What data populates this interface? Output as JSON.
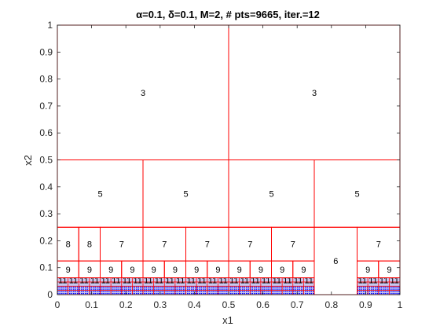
{
  "chart_data": {
    "type": "partition",
    "title": "α=0.1, δ=0.1, M=2, # pts=9665, iter.=12",
    "xlabel": "x1",
    "ylabel": "x2",
    "xlim": [
      0,
      1
    ],
    "ylim": [
      0,
      1
    ],
    "xticks": [
      "0",
      "0.1",
      "0.2",
      "0.3",
      "0.4",
      "0.5",
      "0.6",
      "0.7",
      "0.8",
      "0.9",
      "1"
    ],
    "yticks": [
      "0",
      "0.1",
      "0.2",
      "0.3",
      "0.4",
      "0.5",
      "0.6",
      "0.7",
      "0.8",
      "0.9",
      "1"
    ],
    "cell_color": "#ff0000",
    "point_color": "#0000ff",
    "cells": [
      {
        "x": [
          0,
          0.5
        ],
        "y": [
          0.5,
          1
        ],
        "label": "3"
      },
      {
        "x": [
          0.5,
          1
        ],
        "y": [
          0.5,
          1
        ],
        "label": "3"
      },
      {
        "x": [
          0,
          0.25
        ],
        "y": [
          0.25,
          0.5
        ],
        "label": "5"
      },
      {
        "x": [
          0.25,
          0.5
        ],
        "y": [
          0.25,
          0.5
        ],
        "label": "5"
      },
      {
        "x": [
          0.5,
          0.75
        ],
        "y": [
          0.25,
          0.5
        ],
        "label": "5"
      },
      {
        "x": [
          0.75,
          1
        ],
        "y": [
          0.25,
          0.5
        ],
        "label": "5"
      },
      {
        "x": [
          0,
          0.0625
        ],
        "y": [
          0.125,
          0.25
        ],
        "label": "8"
      },
      {
        "x": [
          0.0625,
          0.125
        ],
        "y": [
          0.125,
          0.25
        ],
        "label": "8"
      },
      {
        "x": [
          0.125,
          0.25
        ],
        "y": [
          0.125,
          0.25
        ],
        "label": "7"
      },
      {
        "x": [
          0.25,
          0.375
        ],
        "y": [
          0.125,
          0.25
        ],
        "label": "7"
      },
      {
        "x": [
          0.375,
          0.5
        ],
        "y": [
          0.125,
          0.25
        ],
        "label": "7"
      },
      {
        "x": [
          0.5,
          0.625
        ],
        "y": [
          0.125,
          0.25
        ],
        "label": "7"
      },
      {
        "x": [
          0.625,
          0.75
        ],
        "y": [
          0.125,
          0.25
        ],
        "label": "7"
      },
      {
        "x": [
          0.875,
          1
        ],
        "y": [
          0.125,
          0.25
        ],
        "label": "7"
      },
      {
        "x": [
          0.75,
          0.875
        ],
        "y": [
          0,
          0.25
        ],
        "label": "6"
      },
      {
        "x": [
          0,
          0.0625
        ],
        "y": [
          0.0625,
          0.125
        ],
        "label": "9"
      },
      {
        "x": [
          0.0625,
          0.125
        ],
        "y": [
          0.0625,
          0.125
        ],
        "label": "9"
      },
      {
        "x": [
          0.125,
          0.1875
        ],
        "y": [
          0.0625,
          0.125
        ],
        "label": "9"
      },
      {
        "x": [
          0.1875,
          0.25
        ],
        "y": [
          0.0625,
          0.125
        ],
        "label": "9"
      },
      {
        "x": [
          0.25,
          0.3125
        ],
        "y": [
          0.0625,
          0.125
        ],
        "label": "9"
      },
      {
        "x": [
          0.3125,
          0.375
        ],
        "y": [
          0.0625,
          0.125
        ],
        "label": "9"
      },
      {
        "x": [
          0.375,
          0.4375
        ],
        "y": [
          0.0625,
          0.125
        ],
        "label": "9"
      },
      {
        "x": [
          0.4375,
          0.5
        ],
        "y": [
          0.0625,
          0.125
        ],
        "label": "9"
      },
      {
        "x": [
          0.5,
          0.5625
        ],
        "y": [
          0.0625,
          0.125
        ],
        "label": "9"
      },
      {
        "x": [
          0.5625,
          0.625
        ],
        "y": [
          0.0625,
          0.125
        ],
        "label": "9"
      },
      {
        "x": [
          0.625,
          0.6875
        ],
        "y": [
          0.0625,
          0.125
        ],
        "label": "9"
      },
      {
        "x": [
          0.6875,
          0.75
        ],
        "y": [
          0.0625,
          0.125
        ],
        "label": "9"
      },
      {
        "x": [
          0.875,
          0.9375
        ],
        "y": [
          0.0625,
          0.125
        ],
        "label": "9"
      },
      {
        "x": [
          0.9375,
          1
        ],
        "y": [
          0.0625,
          0.125
        ],
        "label": "9"
      }
    ],
    "band": {
      "y": [
        0,
        0.0625
      ],
      "x_ranges": [
        [
          0,
          0.75
        ],
        [
          0.875,
          1
        ]
      ],
      "cell_width": 0.03125,
      "label": "11",
      "rows": 4,
      "point_rows": [
        0.004,
        0.012,
        0.02,
        0.028
      ]
    }
  }
}
